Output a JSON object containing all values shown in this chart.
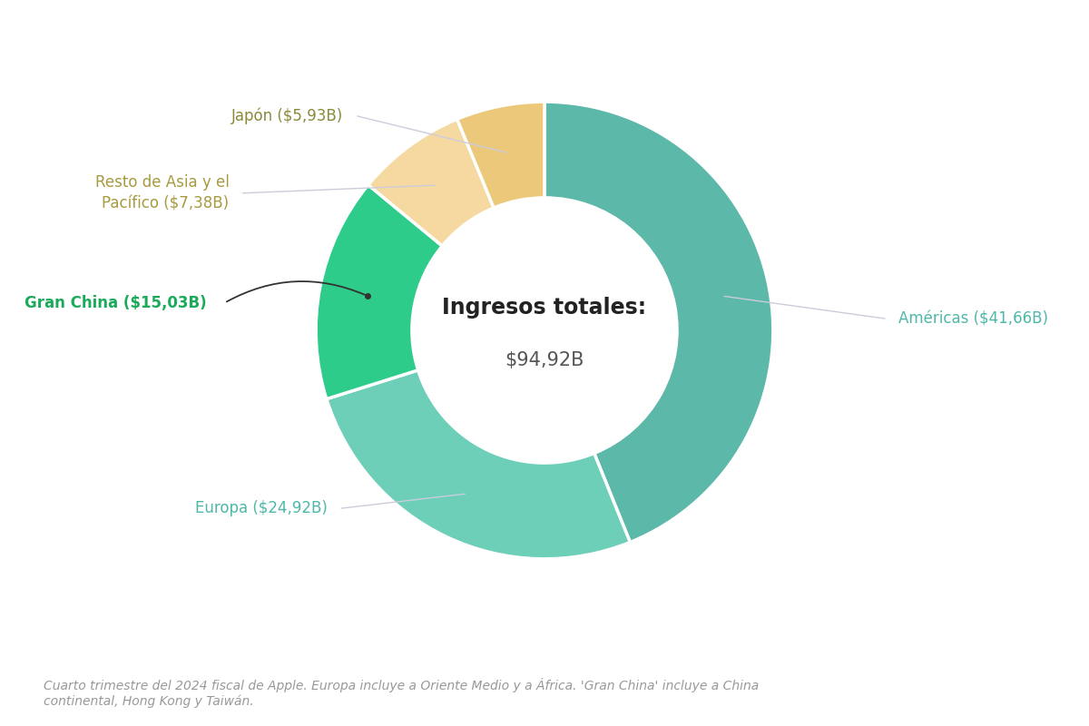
{
  "title_line1": "Ingresos totales:",
  "title_line2": "$94,92B",
  "regions": [
    "Américas",
    "Europa",
    "Gran China",
    "Resto de Asia y el\nPacífico",
    "Japón"
  ],
  "values": [
    41.66,
    24.92,
    15.03,
    7.38,
    5.93
  ],
  "colors": [
    "#5cb8a8",
    "#6dcfb8",
    "#2ecc8a",
    "#f5d9a0",
    "#ecc97a"
  ],
  "label_display": [
    "Américas ($41,66B)",
    "Europa ($24,92B)",
    "Gran China ($15,03B)",
    "Resto de Asia y el\nPacífico ($7,38B)",
    "Japón ($5,93B)"
  ],
  "label_colors": [
    "#4db8a8",
    "#4db8a8",
    "#1aaa5a",
    "#a89a40",
    "#8a8a3a"
  ],
  "label_bold": [
    false,
    false,
    true,
    false,
    false
  ],
  "footnote": "Cuarto trimestre del 2024 fiscal de Apple. Europa incluye a Oriente Medio y a África. 'Gran China' incluye a China\ncontinental, Hong Kong y Taiwán.",
  "background_color": "#ffffff",
  "start_angle": 90,
  "donut_width": 0.42,
  "line_color_gran_china": "#333333",
  "line_color_others": "#ccccdd"
}
